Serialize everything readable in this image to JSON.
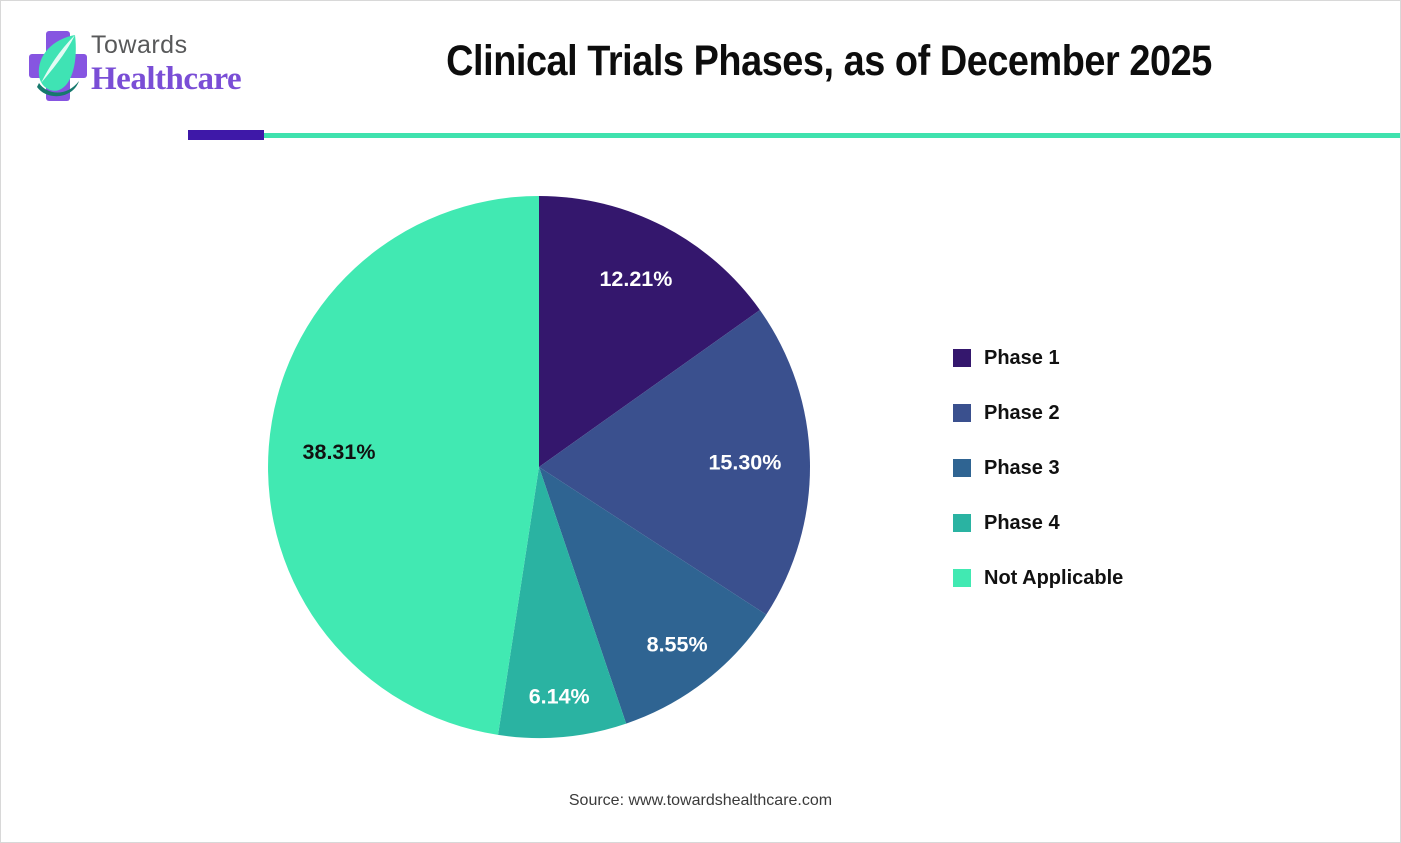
{
  "logo": {
    "top": "Towards",
    "bottom": "Healthcare"
  },
  "header": {
    "title": "Clinical Trials Phases, as of December 2025"
  },
  "chart_data": {
    "type": "pie",
    "title": "Clinical Trials Phases, as of December 2025",
    "categories": [
      "Phase 1",
      "Phase 2",
      "Phase 3",
      "Phase 4",
      "Not Applicable"
    ],
    "values": [
      12.21,
      15.3,
      8.55,
      6.14,
      38.31
    ],
    "labels": [
      "12.21%",
      "15.30%",
      "8.55%",
      "6.14%",
      "38.31%"
    ],
    "colors": [
      "#34176d",
      "#3a508e",
      "#2f6492",
      "#2ab3a2",
      "#41e9b2"
    ],
    "label_colors": [
      "#ffffff",
      "#ffffff",
      "#ffffff",
      "#ffffff",
      "#111111"
    ],
    "start_angle_deg": 0,
    "direction": "clockwise",
    "slices_proportional_to_sum": true,
    "legend_position": "right",
    "label_radius_fractions": [
      0.78,
      0.76,
      0.83,
      0.85,
      0.74
    ]
  },
  "footer": {
    "source": "Source: www.towardshealthcare.com"
  },
  "theme": {
    "divider_purple": "#3e18a8",
    "divider_teal": "#3fe2ae",
    "logo_cross_purple": "#8655e1",
    "logo_leaf_mint": "#3fe3b4",
    "logo_leaf_dark": "#16796d",
    "logo_towards_gray": "#58595a",
    "logo_healthcare_purple": "#7a4ed6",
    "title_color": "#0d0d0d",
    "source_color": "#3a3a3a",
    "background": "#ffffff",
    "border": "#d8d8d8"
  }
}
